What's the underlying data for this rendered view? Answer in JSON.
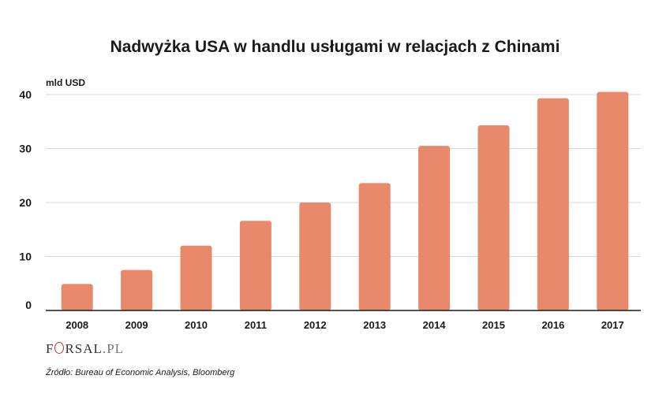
{
  "title": "Nadwyżka USA w handlu usługami w relacjach z Chinami",
  "logo": {
    "prefix": "F",
    "mid": "RSAL",
    "tld": ".PL"
  },
  "source": "Źródło:  Bureau of Economic Analysis, Bloomberg",
  "colors": {
    "bar": "#E8896B",
    "grid": "#d9d9d9",
    "axis": "#1a1a1a"
  },
  "chart_data": {
    "type": "bar",
    "title": "Nadwyżka USA w handlu usługami w relacjach z Chinami",
    "ylabel": "mld USD",
    "xlabel": "",
    "categories": [
      "2008",
      "2009",
      "2010",
      "2011",
      "2012",
      "2013",
      "2014",
      "2015",
      "2016",
      "2017"
    ],
    "values": [
      4.9,
      7.5,
      12.0,
      16.6,
      20.0,
      23.6,
      30.5,
      34.3,
      39.3,
      40.5
    ],
    "ylim": [
      0,
      40
    ],
    "yticks": [
      "0",
      "10",
      "20",
      "30",
      "40"
    ],
    "grid": true,
    "legend": "none"
  }
}
